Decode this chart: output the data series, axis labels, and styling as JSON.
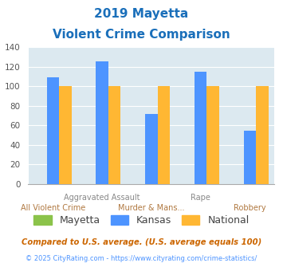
{
  "title_line1": "2019 Mayetta",
  "title_line2": "Violent Crime Comparison",
  "categories": [
    "All Violent Crime",
    "Aggravated Assault",
    "Murder & Mans...",
    "Rape",
    "Robbery"
  ],
  "series": {
    "Mayetta": [
      null,
      null,
      null,
      null,
      null
    ],
    "Kansas": [
      109,
      126,
      72,
      115,
      55
    ],
    "National": [
      100,
      100,
      100,
      100,
      100
    ]
  },
  "colors": {
    "Mayetta": "#8bc34a",
    "Kansas": "#4d94ff",
    "National": "#ffb733"
  },
  "ylim": [
    0,
    140
  ],
  "yticks": [
    0,
    20,
    40,
    60,
    80,
    100,
    120,
    140
  ],
  "bar_width": 0.25,
  "background_color": "#dce9f0",
  "title_color": "#1a6fba",
  "xlabel_top_color": "#888888",
  "xlabel_bottom_color": "#b07840",
  "legend_color": "#444444",
  "footnote1": "Compared to U.S. average. (U.S. average equals 100)",
  "footnote2": "© 2025 CityRating.com - https://www.cityrating.com/crime-statistics/",
  "footnote1_color": "#cc6600",
  "footnote2_color": "#4d94ff"
}
